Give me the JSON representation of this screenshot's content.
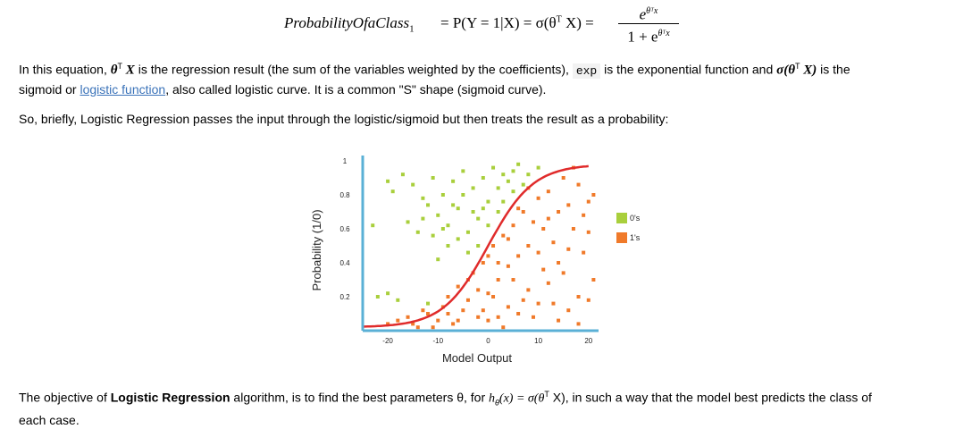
{
  "equation": {
    "lhs": "ProbabilityOfaClass",
    "lhs_sub": "1",
    "rhs": "= P(Y = 1|X) = σ(θ",
    "rhs_sup": "T",
    "rhs_tail": " X) =",
    "numerator": "e",
    "numerator_sup": "θᵀx",
    "denominator": "1 + e",
    "denominator_sup": "θᵀx"
  },
  "para1": {
    "p1": "In this equation, ",
    "theta": "θ",
    "sup": "T",
    "p2": " X",
    "p3": " is the regression result (the sum of the variables weighted by the coefficients), ",
    "code": "exp",
    "p4": " is the exponential function and ",
    "sigma": "σ(θ",
    "sigma_sup": "T",
    "sigma_tail": " X)",
    "p5": " is the",
    "p6": "sigmoid or ",
    "link": "logistic function",
    "p7": ", also called logistic curve. It is a common \"S\" shape (sigmoid curve)."
  },
  "para2": "So, briefly, Logistic Regression passes the input through the logistic/sigmoid but then treats the result as a probability:",
  "para3": {
    "p1": "The objective of ",
    "bold": "Logistic Regression",
    "p2": " algorithm, is to find the best parameters θ, for ",
    "h": "h",
    "hsub": "θ",
    "p3": "(x) = σ(θ",
    "p3sup": "T",
    "p4": " X), in such a way that the model best predicts the class of",
    "p5": "each case."
  },
  "chart_data": {
    "type": "scatter",
    "title": "",
    "xlabel": "Model Output",
    "ylabel": "Probability (1/0)",
    "xlim": [
      -25,
      22
    ],
    "ylim": [
      0,
      1
    ],
    "xticks": [
      "-20",
      "-10",
      "0",
      "10",
      "20"
    ],
    "xtick_values": [
      -20,
      -10,
      0,
      10,
      20
    ],
    "yticks": [
      "1",
      "0.8",
      "0.6",
      "0.4",
      "0.2"
    ],
    "ytick_values": [
      1,
      0.8,
      0.6,
      0.4,
      0.2
    ],
    "legend": [
      {
        "name": "0's",
        "color": "#a9cf3c"
      },
      {
        "name": "1's",
        "color": "#f07a2a"
      }
    ],
    "legend_placement": "right",
    "curve_color": "#e02b2b",
    "axis_color": "#5ab0d6",
    "series": [
      {
        "name": "0's",
        "color": "#a9cf3c",
        "points": [
          [
            -20,
            0.88
          ],
          [
            -19,
            0.82
          ],
          [
            -17,
            0.92
          ],
          [
            -15,
            0.86
          ],
          [
            -13,
            0.78
          ],
          [
            -12,
            0.74
          ],
          [
            -11,
            0.9
          ],
          [
            -10,
            0.68
          ],
          [
            -9,
            0.8
          ],
          [
            -8,
            0.62
          ],
          [
            -7,
            0.88
          ],
          [
            -6,
            0.72
          ],
          [
            -5,
            0.94
          ],
          [
            -4,
            0.58
          ],
          [
            -3,
            0.84
          ],
          [
            -2,
            0.66
          ],
          [
            -1,
            0.9
          ],
          [
            0,
            0.76
          ],
          [
            1,
            0.96
          ],
          [
            2,
            0.84
          ],
          [
            3,
            0.92
          ],
          [
            4,
            0.88
          ],
          [
            5,
            0.94
          ],
          [
            6,
            0.98
          ],
          [
            -23,
            0.62
          ],
          [
            -14,
            0.58
          ],
          [
            -16,
            0.64
          ],
          [
            -22,
            0.2
          ],
          [
            -20,
            0.22
          ],
          [
            -18,
            0.18
          ],
          [
            -12,
            0.16
          ],
          [
            -10,
            0.42
          ],
          [
            -8,
            0.5
          ],
          [
            -6,
            0.54
          ],
          [
            -4,
            0.46
          ],
          [
            -2,
            0.5
          ],
          [
            0,
            0.62
          ],
          [
            2,
            0.7
          ],
          [
            -11,
            0.56
          ],
          [
            -13,
            0.66
          ],
          [
            8,
            0.92
          ],
          [
            10,
            0.96
          ],
          [
            -1,
            0.72
          ],
          [
            -3,
            0.7
          ],
          [
            -5,
            0.8
          ],
          [
            -7,
            0.74
          ],
          [
            -9,
            0.6
          ],
          [
            3,
            0.76
          ],
          [
            5,
            0.82
          ],
          [
            7,
            0.86
          ]
        ]
      },
      {
        "name": "1's",
        "color": "#f07a2a",
        "points": [
          [
            -20,
            0.04
          ],
          [
            -18,
            0.06
          ],
          [
            -16,
            0.08
          ],
          [
            -14,
            0.02
          ],
          [
            -12,
            0.1
          ],
          [
            -10,
            0.06
          ],
          [
            -9,
            0.14
          ],
          [
            -8,
            0.2
          ],
          [
            -7,
            0.04
          ],
          [
            -6,
            0.26
          ],
          [
            -5,
            0.12
          ],
          [
            -4,
            0.18
          ],
          [
            -3,
            0.34
          ],
          [
            -2,
            0.08
          ],
          [
            -1,
            0.4
          ],
          [
            0,
            0.22
          ],
          [
            1,
            0.5
          ],
          [
            2,
            0.3
          ],
          [
            3,
            0.56
          ],
          [
            4,
            0.14
          ],
          [
            5,
            0.62
          ],
          [
            6,
            0.44
          ],
          [
            7,
            0.7
          ],
          [
            8,
            0.24
          ],
          [
            9,
            0.64
          ],
          [
            10,
            0.78
          ],
          [
            11,
            0.36
          ],
          [
            12,
            0.82
          ],
          [
            13,
            0.52
          ],
          [
            14,
            0.7
          ],
          [
            15,
            0.9
          ],
          [
            16,
            0.12
          ],
          [
            17,
            0.6
          ],
          [
            18,
            0.86
          ],
          [
            19,
            0.46
          ],
          [
            20,
            0.76
          ],
          [
            21,
            0.3
          ],
          [
            -11,
            0.02
          ],
          [
            -13,
            0.12
          ],
          [
            -15,
            0.04
          ],
          [
            0,
            0.44
          ],
          [
            2,
            0.08
          ],
          [
            4,
            0.38
          ],
          [
            6,
            0.1
          ],
          [
            8,
            0.5
          ],
          [
            10,
            0.16
          ],
          [
            12,
            0.28
          ],
          [
            14,
            0.4
          ],
          [
            16,
            0.74
          ],
          [
            18,
            0.2
          ],
          [
            20,
            0.58
          ],
          [
            -1,
            0.12
          ],
          [
            1,
            0.2
          ],
          [
            3,
            0.02
          ],
          [
            5,
            0.3
          ],
          [
            7,
            0.18
          ],
          [
            9,
            0.08
          ],
          [
            11,
            0.6
          ],
          [
            13,
            0.16
          ],
          [
            15,
            0.34
          ],
          [
            17,
            0.96
          ],
          [
            19,
            0.68
          ],
          [
            21,
            0.8
          ],
          [
            -4,
            0.3
          ],
          [
            -6,
            0.06
          ],
          [
            -8,
            0.1
          ],
          [
            -2,
            0.24
          ],
          [
            0,
            0.06
          ],
          [
            2,
            0.4
          ],
          [
            4,
            0.54
          ],
          [
            6,
            0.72
          ],
          [
            8,
            0.84
          ],
          [
            10,
            0.46
          ],
          [
            12,
            0.66
          ],
          [
            14,
            0.06
          ],
          [
            16,
            0.48
          ],
          [
            18,
            0.04
          ],
          [
            20,
            0.18
          ]
        ]
      }
    ]
  }
}
